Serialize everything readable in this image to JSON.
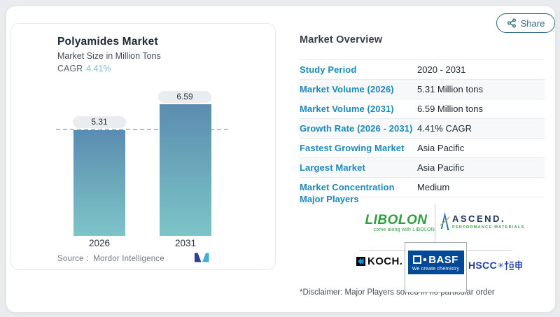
{
  "share": {
    "label": "Share"
  },
  "chart_panel": {
    "title": "Polyamides Market",
    "subtitle": "Market Size in Million Tons",
    "cagr_label": "CAGR",
    "cagr_value": "4.41%",
    "source_label": "Source :",
    "source_value": "Mordor Intelligence"
  },
  "chart_data": {
    "type": "bar",
    "title": "Polyamides Market",
    "subtitle": "Market Size in Million Tons",
    "unit": "Million Tons",
    "cagr": "4.41%",
    "categories": [
      "2026",
      "2031"
    ],
    "values": [
      5.31,
      6.59
    ],
    "bar_labels": [
      "5.31",
      "6.59"
    ],
    "reference_line": 5.31,
    "ylim": [
      0,
      6.59
    ],
    "grid": false,
    "legend": "none",
    "bar_gradient": [
      "#5b8cb0",
      "#7dc4c9"
    ],
    "source": "Mordor Intelligence"
  },
  "overview": {
    "heading": "Market Overview",
    "rows": [
      {
        "label": "Study Period",
        "value": "2020 - 2031"
      },
      {
        "label": "Market Volume (2026)",
        "value": "5.31 Million tons"
      },
      {
        "label": "Market Volume (2031)",
        "value": "6.59 Million tons"
      },
      {
        "label": "Growth Rate (2026 - 2031)",
        "value": "4.41% CAGR"
      },
      {
        "label": "Fastest Growing Market",
        "value": "Asia Pacific"
      },
      {
        "label": "Largest Market",
        "value": "Asia Pacific"
      },
      {
        "label": "Market Concentration",
        "value": "Medium"
      }
    ],
    "major_players_label": "Major Players",
    "disclaimer": "*Disclaimer: Major Players sorted in no particular order"
  },
  "logos": {
    "libolon": {
      "name": "LIBOLON",
      "tagline": "come along with LIBOLON",
      "color": "#2f9e3f"
    },
    "ascend": {
      "name": "ASCEND.",
      "subtext": "PERFORMANCE MATERIALS",
      "navy": "#22365f",
      "green": "#3fa04a",
      "blue": "#1b75bb"
    },
    "koch": {
      "name": "KOCH.",
      "color": "#0d0d0d",
      "icon_blue": "#0a9bdb"
    },
    "basf": {
      "name": "BASF",
      "tagline": "We create chemistry",
      "bg": "#004a96"
    },
    "hscc": {
      "name": "HSCC",
      "mark": "✳",
      "cn": "恒申",
      "color": "#1e3fa8"
    }
  },
  "colors": {
    "page_bg": "#e9ebee",
    "label_blue": "#1c89ba",
    "cagr_blue": "#85bad2",
    "share_teal": "#2e6b80",
    "mordor_navy": "#2e3e95",
    "mordor_teal": "#41b1d3"
  }
}
